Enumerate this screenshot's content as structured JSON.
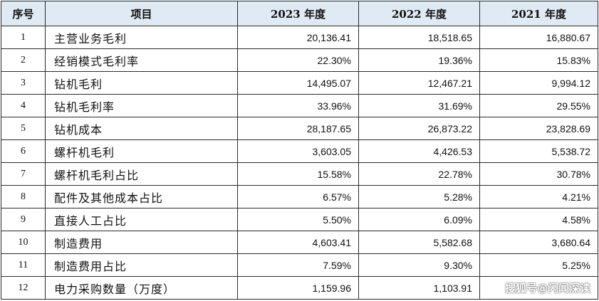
{
  "table": {
    "headers": [
      "序号",
      "项目",
      "2023 年度",
      "2022 年度",
      "2021 年度"
    ],
    "rows": [
      [
        "1",
        "主营业务毛利",
        "20,136.41",
        "18,518.65",
        "16,880.67"
      ],
      [
        "2",
        "经销模式毛利率",
        "22.30%",
        "19.36%",
        "15.83%"
      ],
      [
        "3",
        "钻机毛利",
        "14,495.07",
        "12,467.21",
        "9,994.12"
      ],
      [
        "4",
        "钻机毛利率",
        "33.96%",
        "31.69%",
        "29.55%"
      ],
      [
        "5",
        "钻机成本",
        "28,187.65",
        "26,873.22",
        "23,828.69"
      ],
      [
        "6",
        "螺杆机毛利",
        "3,603.05",
        "4,426.53",
        "5,538.72"
      ],
      [
        "7",
        "螺杆机毛利占比",
        "15.58%",
        "22.78%",
        "30.78%"
      ],
      [
        "8",
        "配件及其他成本占比",
        "6.57%",
        "5.28%",
        "4.21%"
      ],
      [
        "9",
        "直接人工占比",
        "5.50%",
        "6.09%",
        "4.58%"
      ],
      [
        "10",
        "制造费用",
        "4,603.41",
        "5,582.68",
        "3,680.64"
      ],
      [
        "11",
        "制造费用占比",
        "7.59%",
        "9.30%",
        "5.25%"
      ],
      [
        "12",
        "电力采购数量（万度）",
        "1,159.96",
        "1,103.91",
        ""
      ]
    ]
  },
  "watermark": "搜狐号@闪闻深读",
  "colors": {
    "header_bg": "#dfeaf5",
    "border": "#2b2b2b"
  }
}
